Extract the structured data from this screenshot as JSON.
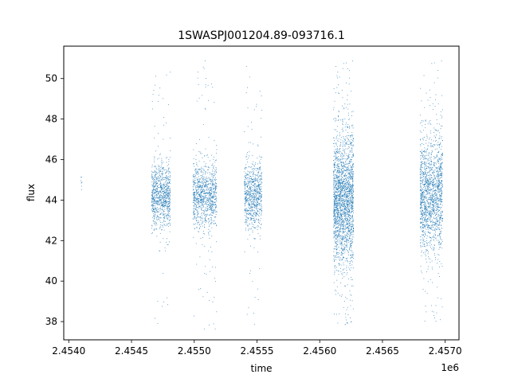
{
  "chart_data": {
    "type": "scatter",
    "title": "1SWASPJ001204.89-093716.1",
    "xlabel": "time",
    "ylabel": "flux",
    "x_offset_label": "1e6",
    "xlim": [
      2453960,
      2457110
    ],
    "ylim": [
      37.1,
      51.6
    ],
    "x_ticks": [
      2454000,
      2454500,
      2455000,
      2455500,
      2456000,
      2456500,
      2457000
    ],
    "x_tick_labels": [
      "2.4540",
      "2.4545",
      "2.4550",
      "2.4555",
      "2.4560",
      "2.4565",
      "2.4570"
    ],
    "y_ticks": [
      38,
      40,
      42,
      44,
      46,
      48,
      50
    ],
    "y_tick_labels": [
      "38",
      "40",
      "42",
      "44",
      "46",
      "48",
      "50"
    ],
    "grid": false,
    "marker_color": "#1f77b4",
    "series": [
      {
        "seasons": [
          {
            "x_range": [
              2454095,
              2454105
            ],
            "y_center": 45.0,
            "y_spread": 0.3,
            "n": 8
          },
          {
            "x_range": [
              2454660,
              2454810
            ],
            "y_center": 44.2,
            "y_spread": 0.8,
            "n": 900,
            "outlier_range": [
              37.7,
              50.5
            ]
          },
          {
            "x_range": [
              2454990,
              2455180
            ],
            "y_center": 44.2,
            "y_spread": 0.8,
            "n": 1000,
            "outlier_range": [
              37.6,
              50.9
            ]
          },
          {
            "x_range": [
              2455400,
              2455540
            ],
            "y_center": 44.2,
            "y_spread": 0.8,
            "n": 800,
            "outlier_range": [
              37.7,
              50.9
            ]
          },
          {
            "x_range": [
              2456110,
              2456270
            ],
            "y_center": 44.0,
            "y_spread": 1.6,
            "n": 2200,
            "outlier_range": [
              37.7,
              50.9
            ]
          },
          {
            "x_range": [
              2456800,
              2456980
            ],
            "y_center": 44.3,
            "y_spread": 1.4,
            "n": 1600,
            "outlier_range": [
              37.8,
              50.9
            ]
          }
        ]
      }
    ]
  }
}
